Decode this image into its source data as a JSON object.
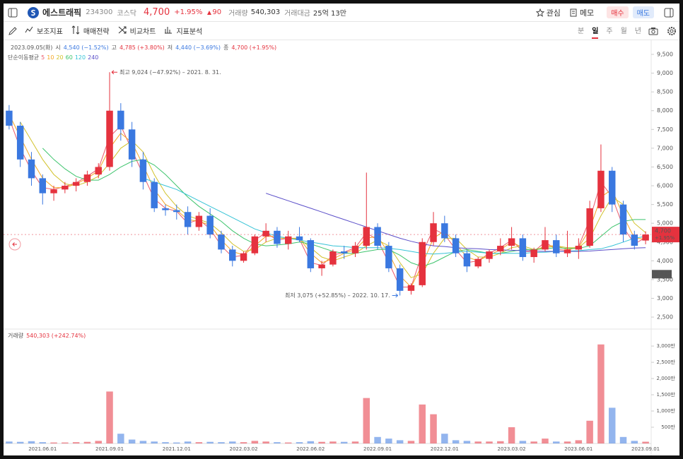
{
  "header": {
    "name": "에스트래픽",
    "code": "234300",
    "market": "코스닥",
    "price": "4,700",
    "change_pct": "+1.95%",
    "change": "90",
    "volume_label": "거래량",
    "volume": "540,303",
    "amount_label": "거래대금",
    "amount": "25억 13만",
    "watch": "관심",
    "memo": "메모",
    "buy": "매수",
    "sell": "매도"
  },
  "toolbar": {
    "items": [
      "보조지표",
      "매매전략",
      "비교차트",
      "지표분석"
    ],
    "periods": [
      "분",
      "일",
      "주",
      "월",
      "년"
    ],
    "selected_period": 1
  },
  "chart_data": {
    "type": "candlestick",
    "info": {
      "date": "2023.09.05(화)",
      "open_label": "시",
      "open": "4,540 (−1.52%)",
      "high_label": "고",
      "high": "4,785 (+3.80%)",
      "low_label": "저",
      "low": "4,440 (−3.69%)",
      "close_label": "종",
      "close": "4,700 (+1.95%)"
    },
    "series_label": "단순이동평균",
    "up_color": "#e5323e",
    "down_color": "#3a78e0",
    "categories": [
      null,
      null,
      null,
      "2021.06.01",
      null,
      null,
      null,
      null,
      null,
      "2021.09.01",
      null,
      null,
      null,
      null,
      null,
      "2021.12.01",
      null,
      null,
      null,
      null,
      null,
      "2022.03.02",
      null,
      null,
      null,
      null,
      null,
      "2022.06.02",
      null,
      null,
      null,
      null,
      null,
      "2022.09.01",
      null,
      null,
      null,
      null,
      null,
      "2022.12.01",
      null,
      null,
      null,
      null,
      null,
      "2023.03.02",
      null,
      null,
      null,
      null,
      null,
      "2023.06.01",
      null,
      null,
      null,
      null,
      null,
      "2023.09.01"
    ],
    "open": [
      8000,
      7600,
      6700,
      6200,
      5800,
      5900,
      6000,
      6100,
      6300,
      6500,
      8000,
      7500,
      6700,
      6100,
      5400,
      5350,
      5300,
      4900,
      5200,
      4700,
      4300,
      4000,
      4200,
      4650,
      4800,
      4450,
      4650,
      4550,
      3800,
      3900,
      4250,
      4200,
      4400,
      4900,
      4400,
      3800,
      3200,
      3350,
      4500,
      5000,
      4600,
      4200,
      3850,
      4050,
      4250,
      4400,
      4600,
      4100,
      4300,
      4550,
      4200,
      4300,
      4400,
      5400,
      6400,
      5500,
      4700,
      4540
    ],
    "high": [
      8150,
      7700,
      6900,
      6300,
      6000,
      6100,
      6200,
      6400,
      6600,
      9024,
      8200,
      7700,
      6900,
      6200,
      5500,
      5500,
      5450,
      5300,
      5400,
      4800,
      4400,
      4250,
      4700,
      5000,
      4900,
      4800,
      4900,
      4600,
      4000,
      4300,
      4400,
      4500,
      6350,
      5000,
      4500,
      3900,
      3400,
      4600,
      5300,
      5200,
      4700,
      4300,
      4100,
      4300,
      4600,
      4900,
      4700,
      4350,
      4900,
      4700,
      4800,
      4600,
      5600,
      7100,
      6500,
      5600,
      4800,
      4785
    ],
    "low": [
      7500,
      6500,
      6000,
      5500,
      5600,
      5800,
      5850,
      6000,
      6200,
      6400,
      7200,
      6500,
      5900,
      5300,
      5200,
      5100,
      4700,
      4800,
      4600,
      4200,
      3850,
      3950,
      4150,
      4500,
      4350,
      4300,
      4500,
      3700,
      3600,
      3850,
      4050,
      4100,
      4300,
      4300,
      3700,
      3075,
      3100,
      3300,
      4400,
      4500,
      4100,
      3700,
      3800,
      3950,
      4150,
      4300,
      4000,
      3950,
      4250,
      4100,
      4100,
      4050,
      4350,
      5300,
      5300,
      4500,
      4300,
      4440
    ],
    "close": [
      7600,
      6700,
      6200,
      5800,
      5900,
      6000,
      6100,
      6300,
      6500,
      8000,
      7500,
      6700,
      6100,
      5400,
      5350,
      5300,
      4900,
      5200,
      4700,
      4300,
      4000,
      4200,
      4650,
      4800,
      4450,
      4650,
      4550,
      3800,
      3900,
      4250,
      4200,
      4400,
      4900,
      4400,
      3800,
      3200,
      3350,
      4500,
      5000,
      4600,
      4200,
      3850,
      4050,
      4250,
      4400,
      4600,
      4100,
      4300,
      4550,
      4200,
      4300,
      4400,
      5400,
      6400,
      5500,
      4700,
      4400,
      4700
    ],
    "series": [
      {
        "name": "5",
        "color": "#ec5a6a",
        "values": [
          7800,
          7000,
          6400,
          5950,
          5900,
          5980,
          6080,
          6250,
          6450,
          7300,
          7600,
          6950,
          6300,
          5650,
          5400,
          5320,
          5000,
          5100,
          4850,
          4400,
          4100,
          4150,
          4550,
          4750,
          4550,
          4600,
          4580,
          3950,
          3880,
          4150,
          4230,
          4350,
          4750,
          4550,
          3950,
          3300,
          3300,
          4200,
          4850,
          4700,
          4300,
          3950,
          4000,
          4200,
          4350,
          4550,
          4250,
          4250,
          4500,
          4300,
          4280,
          4380,
          5100,
          6100,
          5700,
          4900,
          4450,
          4620
        ]
      },
      {
        "name": "10",
        "color": "#f5a623",
        "values": [
          7900,
          7300,
          6700,
          6200,
          5950,
          5950,
          6050,
          6200,
          6400,
          7000,
          7400,
          7150,
          6550,
          5900,
          5500,
          5350,
          5100,
          5050,
          4950,
          4550,
          4250,
          4150,
          4400,
          4650,
          4650,
          4600,
          4600,
          4200,
          3950,
          4050,
          4200,
          4300,
          4600,
          4650,
          4200,
          3600,
          3300,
          3900,
          4600,
          4800,
          4450,
          4100,
          4000,
          4150,
          4300,
          4500,
          4350,
          4250,
          4400,
          4400,
          4300,
          4350,
          4850,
          5700,
          5900,
          5200,
          4600,
          4580
        ]
      },
      {
        "name": "20",
        "color": "#d2c22c",
        "values": [
          null,
          7700,
          7200,
          6700,
          6300,
          6050,
          6000,
          6100,
          6250,
          6600,
          7000,
          7200,
          6900,
          6300,
          5800,
          5450,
          5200,
          5100,
          5000,
          4750,
          4450,
          4250,
          4300,
          4500,
          4600,
          4600,
          4580,
          4350,
          4100,
          4000,
          4100,
          4200,
          4400,
          4550,
          4400,
          3950,
          3550,
          3650,
          4200,
          4600,
          4600,
          4300,
          4100,
          4100,
          4200,
          4350,
          4400,
          4300,
          4350,
          4400,
          4350,
          4350,
          4600,
          5200,
          5700,
          5500,
          5000,
          4750
        ]
      },
      {
        "name": "60",
        "color": "#3ec46d",
        "values": [
          null,
          null,
          null,
          7000,
          6700,
          6450,
          6250,
          6150,
          6150,
          6300,
          6500,
          6650,
          6700,
          6550,
          6300,
          6000,
          5700,
          5450,
          5250,
          5050,
          4800,
          4600,
          4450,
          4400,
          4420,
          4450,
          4500,
          4450,
          4350,
          4250,
          4200,
          4200,
          4250,
          4300,
          4300,
          4150,
          3950,
          3850,
          3950,
          4100,
          4250,
          4300,
          4250,
          4200,
          4200,
          4250,
          4300,
          4300,
          4320,
          4350,
          4330,
          4330,
          4400,
          4650,
          4900,
          5050,
          5100,
          5100
        ]
      },
      {
        "name": "120",
        "color": "#36c3d6",
        "values": [
          null,
          null,
          null,
          null,
          null,
          null,
          null,
          null,
          null,
          null,
          null,
          null,
          6200,
          6100,
          6000,
          5900,
          5750,
          5600,
          5450,
          5300,
          5150,
          5000,
          4850,
          4750,
          4650,
          4600,
          4550,
          4500,
          4450,
          4400,
          4380,
          4350,
          4350,
          4350,
          4330,
          4300,
          4250,
          4200,
          4180,
          4200,
          4230,
          4250,
          4230,
          4200,
          4200,
          4200,
          4200,
          4220,
          4230,
          4250,
          4260,
          4270,
          4300,
          4320,
          4400,
          4500,
          4600,
          4650
        ]
      },
      {
        "name": "240",
        "color": "#5b4fc9",
        "values": [
          null,
          null,
          null,
          null,
          null,
          null,
          null,
          null,
          null,
          null,
          null,
          null,
          null,
          null,
          null,
          null,
          null,
          null,
          null,
          null,
          null,
          null,
          null,
          5800,
          5700,
          5600,
          5500,
          5400,
          5300,
          5200,
          5100,
          5000,
          4900,
          4800,
          4700,
          4600,
          4520,
          4450,
          4400,
          4380,
          4350,
          4330,
          4320,
          4300,
          4290,
          4280,
          4270,
          4260,
          4250,
          4250,
          4250,
          4250,
          4260,
          4280,
          4300,
          4320,
          4340,
          4350
        ]
      }
    ],
    "ylim": [
      2200,
      9820
    ],
    "yticks": [
      {
        "value": 2500,
        "label": "2,500"
      },
      {
        "value": 3000,
        "label": "3,000"
      },
      {
        "value": 3500,
        "label": "3,500"
      },
      {
        "value": 4000,
        "label": "4,000"
      },
      {
        "value": 4500,
        "label": "4,500"
      },
      {
        "value": 5000,
        "label": "5,000"
      },
      {
        "value": 5500,
        "label": "5,500"
      },
      {
        "value": 6000,
        "label": "6,000"
      },
      {
        "value": 6500,
        "label": "6,500"
      },
      {
        "value": 7000,
        "label": "7,000"
      },
      {
        "value": 7500,
        "label": "7,500"
      },
      {
        "value": 8000,
        "label": "8,000"
      },
      {
        "value": 8500,
        "label": "8,500"
      },
      {
        "value": 9000,
        "label": "9,000"
      },
      {
        "value": 9500,
        "label": "9,500"
      }
    ],
    "annotations": {
      "high": "최고 9,024 (−47.92%) – 2021. 8. 31.",
      "low": "최저 3,075 (+52.85%) – 2022. 10. 17."
    },
    "last_price": {
      "value": 4700,
      "label": "4,700"
    },
    "last_change": "+1.95%",
    "marker_price": {
      "value": 3643,
      "label": "3,643"
    },
    "volume": {
      "label": "거래량",
      "info": "540,303 (+242.74%)",
      "values": [
        60,
        50,
        70,
        40,
        30,
        30,
        40,
        50,
        80,
        1600,
        300,
        120,
        80,
        60,
        40,
        30,
        60,
        40,
        50,
        40,
        60,
        40,
        80,
        60,
        40,
        30,
        40,
        70,
        50,
        60,
        50,
        60,
        1400,
        200,
        150,
        100,
        80,
        1200,
        900,
        300,
        100,
        80,
        60,
        60,
        70,
        500,
        80,
        60,
        150,
        60,
        60,
        100,
        700,
        3050,
        1100,
        200,
        80,
        54
      ],
      "ylim": [
        0,
        3480
      ],
      "yticks": [
        {
          "value": 500,
          "label": "500만"
        },
        {
          "value": 1000,
          "label": "1,000만"
        },
        {
          "value": 1500,
          "label": "1,500만"
        },
        {
          "value": 2000,
          "label": "2,000만"
        },
        {
          "value": 2500,
          "label": "2,500만"
        },
        {
          "value": 3000,
          "label": "3,000만"
        }
      ]
    }
  }
}
